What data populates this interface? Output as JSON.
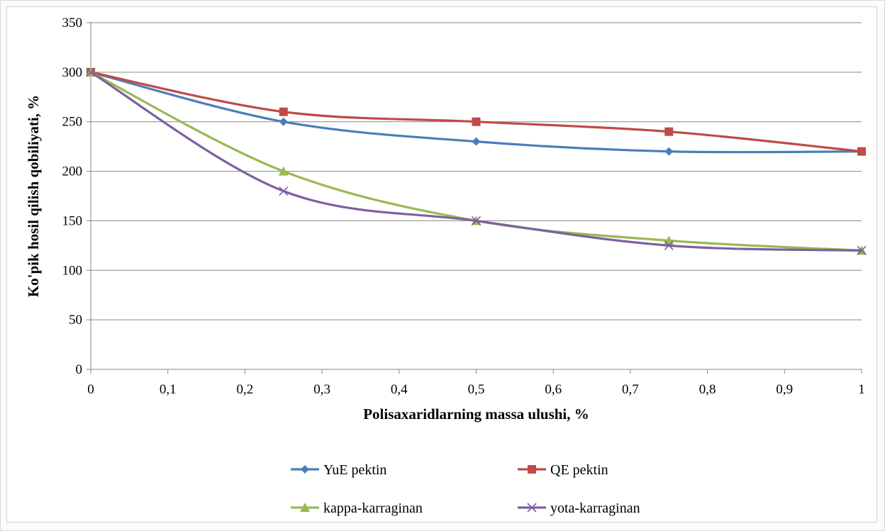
{
  "chart_data": {
    "type": "line",
    "title": "",
    "xlabel": "Polisaxaridlarning  massa ulushi, %",
    "ylabel": "Ko'pik hosil qilish qobiliyati, %",
    "xlim": [
      0,
      1
    ],
    "ylim": [
      0,
      350
    ],
    "x_ticks": [
      0,
      0.1,
      0.2,
      0.3,
      0.4,
      0.5,
      0.6,
      0.7,
      0.8,
      0.9,
      1
    ],
    "x_tick_labels": [
      "0",
      "0,1",
      "0,2",
      "0,3",
      "0,4",
      "0,5",
      "0,6",
      "0,7",
      "0,8",
      "0,9",
      "1"
    ],
    "y_ticks": [
      0,
      50,
      100,
      150,
      200,
      250,
      300,
      350
    ],
    "y_tick_labels": [
      "0",
      "50",
      "100",
      "150",
      "200",
      "250",
      "300",
      "350"
    ],
    "grid": true,
    "legend_position": "bottom",
    "x": [
      0,
      0.25,
      0.5,
      0.75,
      1
    ],
    "series": [
      {
        "name": "YuE pektin",
        "values": [
          300,
          250,
          230,
          220,
          220
        ],
        "color": "#4a7ebb",
        "marker": "diamond"
      },
      {
        "name": "QE pektin",
        "values": [
          300,
          260,
          250,
          240,
          220
        ],
        "color": "#be4b48",
        "marker": "square"
      },
      {
        "name": "kappa-karraginan",
        "values": [
          300,
          200,
          150,
          130,
          120
        ],
        "color": "#98b954",
        "marker": "triangle"
      },
      {
        "name": "yota-karraginan",
        "values": [
          300,
          180,
          150,
          125,
          120
        ],
        "color": "#7d60a0",
        "marker": "x"
      }
    ]
  }
}
